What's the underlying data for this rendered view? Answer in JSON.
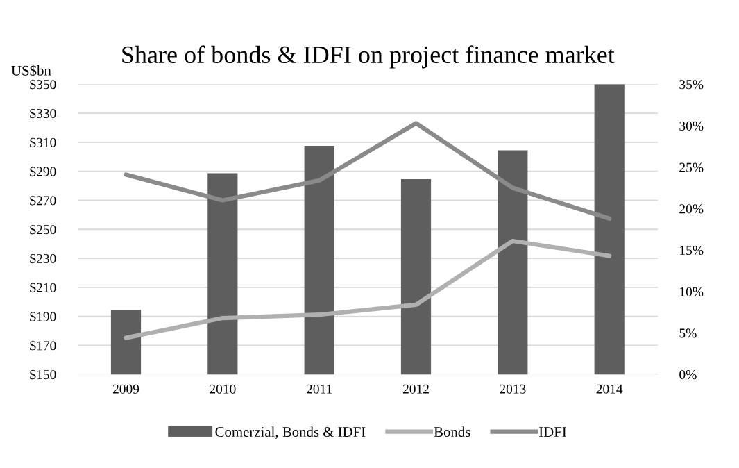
{
  "chart_data": {
    "type": "bar",
    "title": "Share of bonds & IDFI on project finance market",
    "ylabel": "US$bn",
    "categories": [
      "2009",
      "2010",
      "2011",
      "2012",
      "2013",
      "2014"
    ],
    "series": [
      {
        "name": "Comerzial, Bonds & IDFI",
        "color": "#5e5e5e",
        "values": [
          194.5,
          288.7,
          307.5,
          284.6,
          304.5,
          350
        ]
      },
      {
        "name": "Bonds",
        "type": "line",
        "axis": "y2",
        "color": "#b0b0b0",
        "values": [
          4.4,
          6.8,
          7.2,
          8.4,
          16.1,
          14.3
        ]
      },
      {
        "name": "IDFI",
        "type": "line",
        "axis": "y2",
        "color": "#8a8a8a",
        "values": [
          24.1,
          21.0,
          23.4,
          30.3,
          22.5,
          18.8
        ]
      }
    ],
    "ylim": [
      150,
      350
    ],
    "yticks": [
      {
        "value": 150,
        "label": "$150"
      },
      {
        "value": 170,
        "label": "$170"
      },
      {
        "value": 190,
        "label": "$190"
      },
      {
        "value": 210,
        "label": "$210"
      },
      {
        "value": 230,
        "label": "$230"
      },
      {
        "value": 250,
        "label": "$250"
      },
      {
        "value": 270,
        "label": "$270"
      },
      {
        "value": 290,
        "label": "$290"
      },
      {
        "value": 310,
        "label": "$310"
      },
      {
        "value": 330,
        "label": "$330"
      },
      {
        "value": 350,
        "label": "$350"
      }
    ],
    "y2lim": [
      0,
      35
    ],
    "y2ticks": [
      {
        "value": 0,
        "label": "0%"
      },
      {
        "value": 5,
        "label": "5%"
      },
      {
        "value": 10,
        "label": "10%"
      },
      {
        "value": 15,
        "label": "15%"
      },
      {
        "value": 20,
        "label": "20%"
      },
      {
        "value": 25,
        "label": "25%"
      },
      {
        "value": 30,
        "label": "30%"
      },
      {
        "value": 35,
        "label": "35%"
      }
    ],
    "grid": "y",
    "legend": "bottom",
    "marker": "none",
    "line_style": "solid"
  }
}
